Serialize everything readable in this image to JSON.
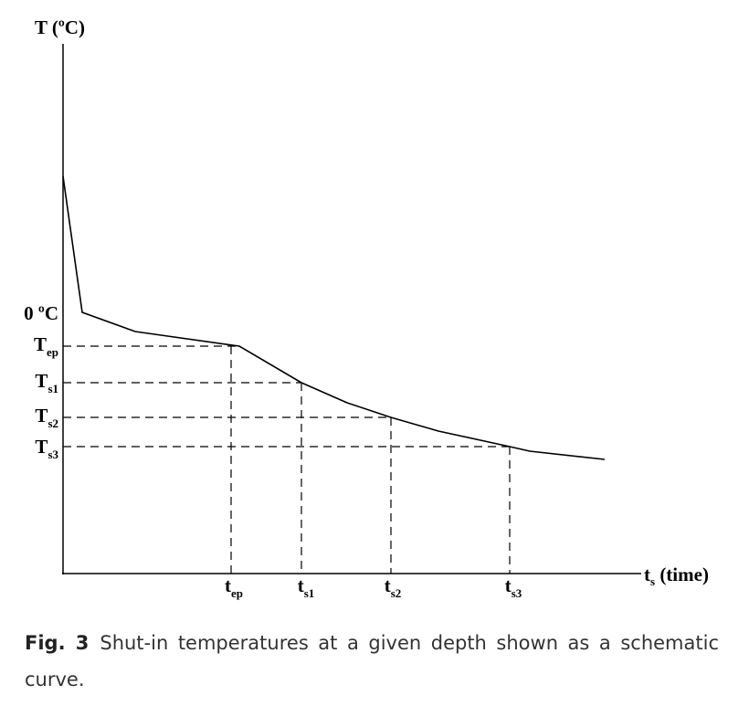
{
  "y_axis": {
    "label": "T (ºC)"
  },
  "x_axis": {
    "main": "t",
    "sub": "s",
    "rest": " (time)"
  },
  "y_labels": [
    {
      "main": "0 ºC"
    },
    {
      "main": "T",
      "sub": "ep"
    },
    {
      "main": "T",
      "sub": "s1"
    },
    {
      "main": "T",
      "sub": "s2"
    },
    {
      "main": "T",
      "sub": "s3"
    }
  ],
  "x_labels": [
    {
      "main": "t",
      "sub": "ep"
    },
    {
      "main": "t",
      "sub": "s1"
    },
    {
      "main": "t",
      "sub": "s2"
    },
    {
      "main": "t",
      "sub": "s3"
    }
  ],
  "caption": {
    "label": "Fig. 3",
    "text": "Shut-in temperatures at a given depth shown as a schematic curve."
  }
}
